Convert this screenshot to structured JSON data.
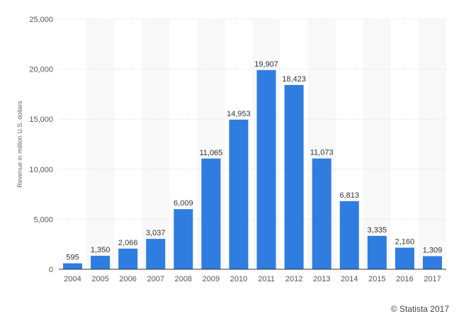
{
  "credit": "© Statista 2017",
  "colors": {
    "bar": "#2f7de1",
    "stripe": "#f8f8f8",
    "grid": "#d5d5d5",
    "axis": "#333333"
  },
  "chart_data": {
    "type": "bar",
    "title": "",
    "xlabel": "",
    "ylabel": "Revenue in million U.S. dollars",
    "ylim": [
      0,
      25000
    ],
    "yticks": [
      0,
      5000,
      10000,
      15000,
      20000,
      25000
    ],
    "ytick_labels": [
      "0",
      "5,000",
      "10,000",
      "15,000",
      "20,000",
      "25,000"
    ],
    "grid": true,
    "categories": [
      "2004",
      "2005",
      "2006",
      "2007",
      "2008",
      "2009",
      "2010",
      "2011",
      "2012",
      "2013",
      "2014",
      "2015",
      "2016",
      "2017"
    ],
    "values": [
      595,
      1350,
      2066,
      3037,
      6009,
      11065,
      14953,
      19907,
      18423,
      11073,
      6813,
      3335,
      2160,
      1309
    ],
    "value_labels": [
      "595",
      "1,350",
      "2,066",
      "3,037",
      "6,009",
      "11,065",
      "14,953",
      "19,907",
      "18,423",
      "11,073",
      "6,813",
      "3,335",
      "2,160",
      "1,309"
    ]
  }
}
